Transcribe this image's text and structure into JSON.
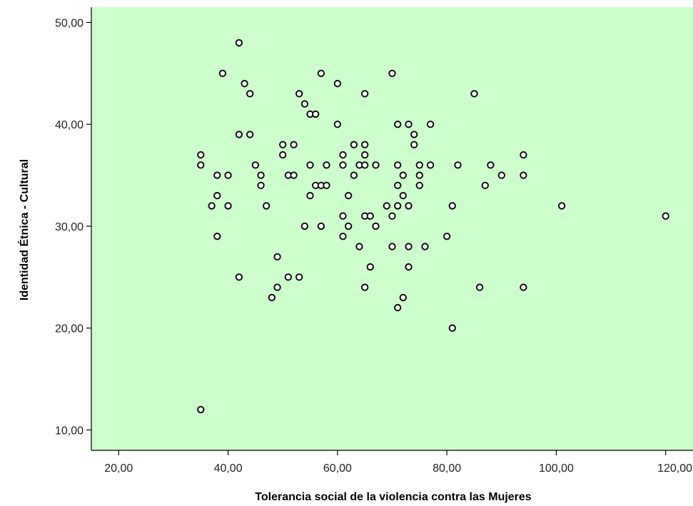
{
  "colors": {
    "plot_background": "#ccffcc",
    "marker_stroke": "#111111",
    "marker_fill": "#ffffff",
    "axis": "#000000"
  },
  "chart_data": {
    "type": "scatter",
    "title": "",
    "xlabel": "Tolerancia social de la violencia contra las Mujeres",
    "ylabel": "Identidad Étnica - Cultural",
    "xlim": [
      15,
      125
    ],
    "ylim": [
      8,
      51.5
    ],
    "x_ticks": [
      20,
      40,
      60,
      80,
      100,
      120
    ],
    "x_tick_labels": [
      "20,00",
      "40,00",
      "60,00",
      "80,00",
      "100,00",
      "120,00"
    ],
    "y_ticks": [
      10,
      20,
      30,
      40,
      50
    ],
    "y_tick_labels": [
      "10,00",
      "20,00",
      "30,00",
      "40,00",
      "50,00"
    ],
    "grid": false,
    "legend": "none",
    "points": [
      [
        35,
        37
      ],
      [
        35,
        36
      ],
      [
        35,
        12
      ],
      [
        37,
        32
      ],
      [
        38,
        35
      ],
      [
        38,
        33
      ],
      [
        38,
        29
      ],
      [
        39,
        45
      ],
      [
        40,
        35
      ],
      [
        40,
        32
      ],
      [
        42,
        48
      ],
      [
        42,
        39
      ],
      [
        42,
        25
      ],
      [
        43,
        44
      ],
      [
        44,
        43
      ],
      [
        44,
        39
      ],
      [
        45,
        36
      ],
      [
        46,
        35
      ],
      [
        46,
        34
      ],
      [
        47,
        32
      ],
      [
        48,
        23
      ],
      [
        49,
        27
      ],
      [
        49,
        24
      ],
      [
        50,
        38
      ],
      [
        50,
        37
      ],
      [
        51,
        35
      ],
      [
        51,
        25
      ],
      [
        52,
        38
      ],
      [
        52,
        35
      ],
      [
        53,
        43
      ],
      [
        53,
        25
      ],
      [
        54,
        42
      ],
      [
        54,
        30
      ],
      [
        55,
        41
      ],
      [
        55,
        36
      ],
      [
        55,
        33
      ],
      [
        56,
        41
      ],
      [
        56,
        34
      ],
      [
        57,
        45
      ],
      [
        57,
        34
      ],
      [
        57,
        30
      ],
      [
        58,
        36
      ],
      [
        58,
        34
      ],
      [
        60,
        44
      ],
      [
        60,
        40
      ],
      [
        61,
        37
      ],
      [
        61,
        36
      ],
      [
        61,
        31
      ],
      [
        61,
        29
      ],
      [
        62,
        33
      ],
      [
        62,
        30
      ],
      [
        63,
        38
      ],
      [
        63,
        35
      ],
      [
        64,
        36
      ],
      [
        64,
        28
      ],
      [
        65,
        43
      ],
      [
        65,
        38
      ],
      [
        65,
        37
      ],
      [
        65,
        36
      ],
      [
        65,
        31
      ],
      [
        65,
        24
      ],
      [
        66,
        31
      ],
      [
        66,
        26
      ],
      [
        67,
        36
      ],
      [
        67,
        30
      ],
      [
        69,
        32
      ],
      [
        70,
        45
      ],
      [
        70,
        31
      ],
      [
        70,
        28
      ],
      [
        71,
        40
      ],
      [
        71,
        36
      ],
      [
        71,
        34
      ],
      [
        71,
        32
      ],
      [
        71,
        22
      ],
      [
        72,
        35
      ],
      [
        72,
        33
      ],
      [
        72,
        23
      ],
      [
        73,
        40
      ],
      [
        73,
        32
      ],
      [
        73,
        28
      ],
      [
        73,
        26
      ],
      [
        74,
        39
      ],
      [
        74,
        38
      ],
      [
        75,
        36
      ],
      [
        75,
        35
      ],
      [
        75,
        34
      ],
      [
        76,
        28
      ],
      [
        77,
        40
      ],
      [
        77,
        36
      ],
      [
        80,
        29
      ],
      [
        81,
        32
      ],
      [
        81,
        20
      ],
      [
        82,
        36
      ],
      [
        85,
        43
      ],
      [
        86,
        24
      ],
      [
        87,
        34
      ],
      [
        88,
        36
      ],
      [
        90,
        35
      ],
      [
        94,
        37
      ],
      [
        94,
        35
      ],
      [
        94,
        24
      ],
      [
        101,
        32
      ],
      [
        120,
        31
      ]
    ]
  }
}
